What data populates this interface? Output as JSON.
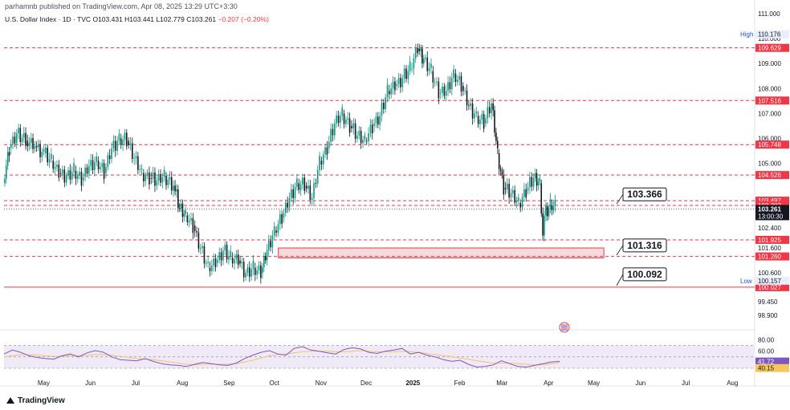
{
  "header": {
    "published": "parhamnb published on TradingView.com, Apr 08, 2025 13:29 UTC+3:30",
    "symbol": "U.S. Dollar Index · 1D · TVC",
    "open": "O103.431",
    "high": "H103.441",
    "low": "L102.779",
    "close": "C103.261",
    "change": "−0.207 (−0.20%)"
  },
  "footer": {
    "brand": "TradingView"
  },
  "colors": {
    "up": "#089981",
    "down": "#131722",
    "level_line": "#f23645",
    "zone_fill": "#f8d9dc",
    "rsi_line": "#7e57c2",
    "rsi_ma": "#f7c65c",
    "rsi_band": "#efe9f8",
    "callout_border": "#131722",
    "high_badge": "#e8eefb"
  },
  "chart_data": [
    {
      "type": "candlestick",
      "title": "U.S. Dollar Index",
      "x_type": "date",
      "x_tick_labels": [
        "May",
        "Jun",
        "Jul",
        "Aug",
        "Sep",
        "Oct",
        "Nov",
        "Dec",
        "2025",
        "Feb",
        "Mar",
        "Apr",
        "May",
        "Jun",
        "Jul",
        "Aug"
      ],
      "x_ticks": [
        "2024-05-01",
        "2024-06-01",
        "2024-07-01",
        "2024-08-01",
        "2024-09-01",
        "2024-10-01",
        "2024-11-01",
        "2024-12-01",
        "2025-01-01",
        "2025-02-01",
        "2025-03-01",
        "2025-04-01",
        "2025-05-01",
        "2025-06-01",
        "2025-07-01",
        "2025-08-01"
      ],
      "xlim": [
        "2024-04-10",
        "2025-08-20"
      ],
      "y_tick_labels": [
        "111.000",
        "110.000",
        "109.000",
        "108.000",
        "107.000",
        "106.000",
        "105.000",
        "103.000",
        "102.400",
        "101.600",
        "100.600",
        "99.450",
        "98.900"
      ],
      "ylim": [
        98.8,
        111.1
      ],
      "levels": [
        {
          "value": 109.629,
          "label": "109.629",
          "style": "dashed"
        },
        {
          "value": 107.516,
          "label": "107.516",
          "style": "dashed"
        },
        {
          "value": 105.748,
          "label": "105.748",
          "style": "dashed"
        },
        {
          "value": 104.526,
          "label": "104.526",
          "style": "dashed"
        },
        {
          "value": 103.497,
          "label": "103.497",
          "style": "dashed"
        },
        {
          "value": 103.307,
          "label": "103.307",
          "style": "dashed"
        },
        {
          "value": 101.925,
          "label": "101.925",
          "style": "dashed"
        },
        {
          "value": 101.26,
          "label": "101.260",
          "style": "dashed"
        },
        {
          "value": 100.027,
          "label": "100.027",
          "style": "solid"
        }
      ],
      "high_label": {
        "tag": "High",
        "value": "110.176"
      },
      "low_label": {
        "tag": "Low",
        "value": "100.157"
      },
      "last_price": {
        "value": "103.261",
        "countdown": "13:00:30"
      },
      "callouts": [
        {
          "label": "103.366",
          "value": 103.366
        },
        {
          "label": "101.316",
          "value": 101.316
        },
        {
          "label": "100.092",
          "value": 100.092
        }
      ],
      "zone": {
        "start": "2024-10-09",
        "end": "2025-05-13",
        "top": 101.6,
        "bottom": 101.2
      },
      "closes": [
        {
          "d": "2024-04-10",
          "c": 104.2
        },
        {
          "d": "2024-04-14",
          "c": 105.6
        },
        {
          "d": "2024-04-19",
          "c": 106.2
        },
        {
          "d": "2024-04-25",
          "c": 105.9
        },
        {
          "d": "2024-05-01",
          "c": 105.7
        },
        {
          "d": "2024-05-07",
          "c": 105.4
        },
        {
          "d": "2024-05-12",
          "c": 105.1
        },
        {
          "d": "2024-05-17",
          "c": 104.6
        },
        {
          "d": "2024-05-22",
          "c": 104.5
        },
        {
          "d": "2024-05-27",
          "c": 104.7
        },
        {
          "d": "2024-06-01",
          "c": 104.3
        },
        {
          "d": "2024-06-06",
          "c": 104.9
        },
        {
          "d": "2024-06-11",
          "c": 105.1
        },
        {
          "d": "2024-06-16",
          "c": 104.6
        },
        {
          "d": "2024-06-21",
          "c": 105.6
        },
        {
          "d": "2024-06-26",
          "c": 106.0
        },
        {
          "d": "2024-07-01",
          "c": 105.9
        },
        {
          "d": "2024-07-06",
          "c": 105.2
        },
        {
          "d": "2024-07-11",
          "c": 104.6
        },
        {
          "d": "2024-07-16",
          "c": 104.4
        },
        {
          "d": "2024-07-21",
          "c": 104.3
        },
        {
          "d": "2024-07-26",
          "c": 104.5
        },
        {
          "d": "2024-08-01",
          "c": 104.1
        },
        {
          "d": "2024-08-05",
          "c": 103.2
        },
        {
          "d": "2024-08-09",
          "c": 102.9
        },
        {
          "d": "2024-08-14",
          "c": 102.5
        },
        {
          "d": "2024-08-19",
          "c": 101.6
        },
        {
          "d": "2024-08-24",
          "c": 100.8
        },
        {
          "d": "2024-08-29",
          "c": 101.0
        },
        {
          "d": "2024-09-03",
          "c": 101.5
        },
        {
          "d": "2024-09-08",
          "c": 101.2
        },
        {
          "d": "2024-09-13",
          "c": 101.1
        },
        {
          "d": "2024-09-18",
          "c": 100.6
        },
        {
          "d": "2024-09-23",
          "c": 100.8
        },
        {
          "d": "2024-09-28",
          "c": 100.6
        },
        {
          "d": "2024-10-02",
          "c": 101.5
        },
        {
          "d": "2024-10-07",
          "c": 102.3
        },
        {
          "d": "2024-10-12",
          "c": 102.8
        },
        {
          "d": "2024-10-17",
          "c": 103.6
        },
        {
          "d": "2024-10-22",
          "c": 104.2
        },
        {
          "d": "2024-10-27",
          "c": 104.1
        },
        {
          "d": "2024-11-01",
          "c": 103.6
        },
        {
          "d": "2024-11-06",
          "c": 105.1
        },
        {
          "d": "2024-11-11",
          "c": 105.6
        },
        {
          "d": "2024-11-16",
          "c": 106.6
        },
        {
          "d": "2024-11-21",
          "c": 107.0
        },
        {
          "d": "2024-11-26",
          "c": 106.5
        },
        {
          "d": "2024-12-01",
          "c": 106.1
        },
        {
          "d": "2024-12-06",
          "c": 105.9
        },
        {
          "d": "2024-12-11",
          "c": 106.5
        },
        {
          "d": "2024-12-16",
          "c": 106.9
        },
        {
          "d": "2024-12-21",
          "c": 107.9
        },
        {
          "d": "2024-12-26",
          "c": 108.1
        },
        {
          "d": "2024-12-31",
          "c": 108.4
        },
        {
          "d": "2025-01-05",
          "c": 108.8
        },
        {
          "d": "2025-01-10",
          "c": 109.6
        },
        {
          "d": "2025-01-14",
          "c": 109.2
        },
        {
          "d": "2025-01-19",
          "c": 108.7
        },
        {
          "d": "2025-01-24",
          "c": 107.8
        },
        {
          "d": "2025-01-29",
          "c": 107.9
        },
        {
          "d": "2025-02-03",
          "c": 108.6
        },
        {
          "d": "2025-02-08",
          "c": 108.1
        },
        {
          "d": "2025-02-13",
          "c": 107.3
        },
        {
          "d": "2025-02-18",
          "c": 106.9
        },
        {
          "d": "2025-02-23",
          "c": 106.6
        },
        {
          "d": "2025-02-28",
          "c": 107.4
        },
        {
          "d": "2025-03-04",
          "c": 105.4
        },
        {
          "d": "2025-03-08",
          "c": 104.0
        },
        {
          "d": "2025-03-13",
          "c": 103.8
        },
        {
          "d": "2025-03-18",
          "c": 103.4
        },
        {
          "d": "2025-03-23",
          "c": 103.9
        },
        {
          "d": "2025-03-28",
          "c": 104.4
        },
        {
          "d": "2025-04-01",
          "c": 104.2
        },
        {
          "d": "2025-04-03",
          "c": 102.1
        },
        {
          "d": "2025-04-04",
          "c": 102.9
        },
        {
          "d": "2025-04-08",
          "c": 103.3
        }
      ]
    },
    {
      "type": "line",
      "title": "RSI",
      "y_tick_labels": [
        "80.00",
        "60.00",
        "41.72",
        "40.15"
      ],
      "ylim": [
        20,
        85
      ],
      "bands": [
        70,
        50,
        30
      ],
      "current": {
        "rsi": "41.72",
        "ma": "40.15"
      },
      "series": [
        {
          "values": [
            55,
            62,
            58,
            52,
            49,
            47,
            46,
            52,
            55,
            50,
            57,
            61,
            58,
            50,
            45,
            44,
            43,
            47,
            42,
            38,
            36,
            35,
            33,
            37,
            40,
            38,
            36,
            35,
            39,
            47,
            53,
            58,
            61,
            55,
            53,
            65,
            68,
            62,
            60,
            57,
            55,
            63,
            66,
            64,
            58,
            56,
            60,
            62,
            65,
            55,
            58,
            53,
            50,
            45,
            42,
            44,
            37,
            32,
            33,
            36,
            43,
            38,
            33,
            32,
            35,
            38,
            41,
            42
          ]
        },
        {
          "values": [
            50,
            52,
            54,
            54,
            53,
            52,
            51,
            51,
            52,
            52,
            53,
            54,
            54,
            53,
            51,
            49,
            47,
            46,
            45,
            43,
            41,
            39,
            37,
            36,
            37,
            37,
            37,
            37,
            38,
            41,
            44,
            48,
            52,
            54,
            55,
            57,
            59,
            60,
            60,
            60,
            59,
            59,
            60,
            61,
            60,
            59,
            59,
            59,
            60,
            59,
            58,
            56,
            54,
            52,
            50,
            48,
            46,
            43,
            41,
            39,
            39,
            39,
            38,
            37,
            36,
            36,
            38,
            40
          ]
        }
      ]
    }
  ]
}
